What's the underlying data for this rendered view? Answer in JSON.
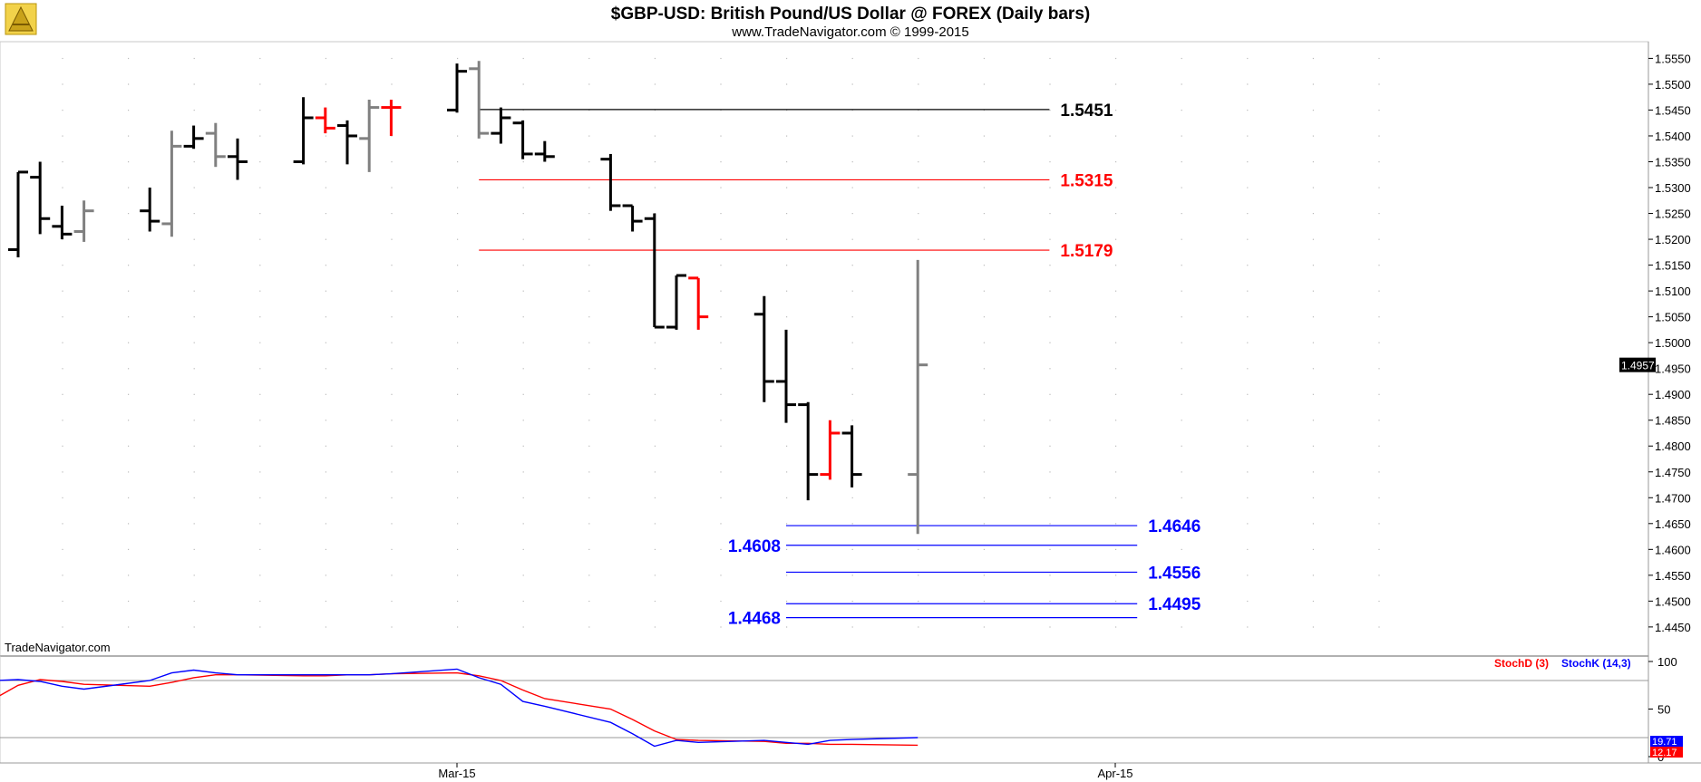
{
  "header": {
    "title": "$GBP-USD:  British Pound/US Dollar @ FOREX  (Daily bars)",
    "copyright": "www.TradeNavigator.com © 1999-2015"
  },
  "watermark": "TradeNavigator.com",
  "colors": {
    "bar_black": "#000000",
    "bar_gray": "#808080",
    "bar_red": "#ff0000",
    "stoch_d": "#ff0000",
    "stoch_k": "#0000ff",
    "level_black": "#000000",
    "level_red": "#ff0000",
    "level_blue": "#0000ff",
    "background": "#ffffff",
    "grid": "#bbbbbb"
  },
  "chart_data": [
    {
      "type": "ohlc",
      "title": "$GBP-USD:  British Pound/US Dollar @ FOREX  (Daily bars)",
      "y_axis_ticks": [
        "1.5550",
        "1.5500",
        "1.5450",
        "1.5400",
        "1.5350",
        "1.5300",
        "1.5250",
        "1.5200",
        "1.5150",
        "1.5100",
        "1.5050",
        "1.5000",
        "1.4950",
        "1.4900",
        "1.4850",
        "1.4800",
        "1.4750",
        "1.4700",
        "1.4650",
        "1.4600",
        "1.4550",
        "1.4500",
        "1.4450"
      ],
      "ylim": [
        1.442,
        1.557
      ],
      "x_axis_labels": [
        {
          "label": "Mar-15",
          "date": "2015-03-02"
        },
        {
          "label": "Apr-15",
          "date": "2015-04-01"
        }
      ],
      "last_price": "1.4957",
      "grid": true,
      "bars": [
        {
          "date": "2015-02-10",
          "o": 1.518,
          "h": 1.533,
          "l": 1.5165,
          "c": 1.533,
          "color": "black"
        },
        {
          "date": "2015-02-11",
          "o": 1.532,
          "h": 1.535,
          "l": 1.521,
          "c": 1.524,
          "color": "black"
        },
        {
          "date": "2015-02-12",
          "o": 1.5225,
          "h": 1.5265,
          "l": 1.52,
          "c": 1.521,
          "color": "black"
        },
        {
          "date": "2015-02-13",
          "o": 1.5215,
          "h": 1.5275,
          "l": 1.5195,
          "c": 1.5255,
          "color": "gray"
        },
        {
          "date": "2015-02-16",
          "o": 1.5255,
          "h": 1.53,
          "l": 1.5215,
          "c": 1.5235,
          "color": "black"
        },
        {
          "date": "2015-02-17",
          "o": 1.523,
          "h": 1.541,
          "l": 1.5205,
          "c": 1.538,
          "color": "gray"
        },
        {
          "date": "2015-02-18",
          "o": 1.538,
          "h": 1.542,
          "l": 1.5375,
          "c": 1.5395,
          "color": "black"
        },
        {
          "date": "2015-02-19",
          "o": 1.5405,
          "h": 1.5425,
          "l": 1.534,
          "c": 1.536,
          "color": "gray"
        },
        {
          "date": "2015-02-20",
          "o": 1.536,
          "h": 1.5395,
          "l": 1.5315,
          "c": 1.535,
          "color": "black"
        },
        {
          "date": "2015-02-23",
          "o": 1.535,
          "h": 1.5475,
          "l": 1.5345,
          "c": 1.5435,
          "color": "black"
        },
        {
          "date": "2015-02-24",
          "o": 1.5435,
          "h": 1.5455,
          "l": 1.5405,
          "c": 1.5415,
          "color": "red"
        },
        {
          "date": "2015-02-25",
          "o": 1.542,
          "h": 1.543,
          "l": 1.5345,
          "c": 1.54,
          "color": "black"
        },
        {
          "date": "2015-02-26",
          "o": 1.5395,
          "h": 1.547,
          "l": 1.533,
          "c": 1.5455,
          "color": "gray"
        },
        {
          "date": "2015-02-27",
          "o": 1.5455,
          "h": 1.547,
          "l": 1.54,
          "c": 1.5455,
          "color": "red"
        },
        {
          "date": "2015-03-02",
          "o": 1.545,
          "h": 1.554,
          "l": 1.5445,
          "c": 1.5525,
          "color": "black"
        },
        {
          "date": "2015-03-03",
          "o": 1.553,
          "h": 1.5545,
          "l": 1.5395,
          "c": 1.5405,
          "color": "gray"
        },
        {
          "date": "2015-03-04",
          "o": 1.5405,
          "h": 1.5455,
          "l": 1.5385,
          "c": 1.5435,
          "color": "black"
        },
        {
          "date": "2015-03-05",
          "o": 1.5425,
          "h": 1.543,
          "l": 1.5355,
          "c": 1.5365,
          "color": "black"
        },
        {
          "date": "2015-03-06",
          "o": 1.5365,
          "h": 1.539,
          "l": 1.535,
          "c": 1.536,
          "color": "black"
        },
        {
          "date": "2015-03-09",
          "o": 1.5355,
          "h": 1.5365,
          "l": 1.5255,
          "c": 1.5265,
          "color": "black"
        },
        {
          "date": "2015-03-10",
          "o": 1.5265,
          "h": 1.5265,
          "l": 1.5215,
          "c": 1.5235,
          "color": "black"
        },
        {
          "date": "2015-03-11",
          "o": 1.524,
          "h": 1.525,
          "l": 1.503,
          "c": 1.503,
          "color": "black"
        },
        {
          "date": "2015-03-12",
          "o": 1.503,
          "h": 1.513,
          "l": 1.5025,
          "c": 1.513,
          "color": "black"
        },
        {
          "date": "2015-03-13",
          "o": 1.5125,
          "h": 1.5125,
          "l": 1.5025,
          "c": 1.505,
          "color": "red"
        },
        {
          "date": "2015-03-16",
          "o": 1.5055,
          "h": 1.509,
          "l": 1.4885,
          "c": 1.4925,
          "color": "black"
        },
        {
          "date": "2015-03-17",
          "o": 1.4925,
          "h": 1.5025,
          "l": 1.4845,
          "c": 1.488,
          "color": "black"
        },
        {
          "date": "2015-03-18",
          "o": 1.488,
          "h": 1.4885,
          "l": 1.4695,
          "c": 1.4745,
          "color": "black"
        },
        {
          "date": "2015-03-19",
          "o": 1.4745,
          "h": 1.485,
          "l": 1.4735,
          "c": 1.4825,
          "color": "red"
        },
        {
          "date": "2015-03-20",
          "o": 1.4825,
          "h": 1.484,
          "l": 1.472,
          "c": 1.4745,
          "color": "black"
        },
        {
          "date": "2015-03-23",
          "o": 1.4745,
          "h": 1.516,
          "l": 1.463,
          "c": 1.4957,
          "color": "gray"
        }
      ],
      "levels": [
        {
          "value": 1.5451,
          "label": "1.5451",
          "color": "black",
          "from": "2015-03-03",
          "to": "2015-03-29",
          "label_side": "right"
        },
        {
          "value": 1.5315,
          "label": "1.5315",
          "color": "red",
          "from": "2015-03-03",
          "to": "2015-03-29",
          "label_side": "right"
        },
        {
          "value": 1.5179,
          "label": "1.5179",
          "color": "red",
          "from": "2015-03-03",
          "to": "2015-03-29",
          "label_side": "right"
        },
        {
          "value": 1.4646,
          "label": "1.4646",
          "color": "blue",
          "from": "2015-03-17",
          "to": "2015-04-02",
          "label_side": "right"
        },
        {
          "value": 1.4608,
          "label": "1.4608",
          "color": "blue",
          "from": "2015-03-17",
          "to": "2015-04-02",
          "label_side": "left"
        },
        {
          "value": 1.4556,
          "label": "1.4556",
          "color": "blue",
          "from": "2015-03-17",
          "to": "2015-04-02",
          "label_side": "right"
        },
        {
          "value": 1.4495,
          "label": "1.4495",
          "color": "blue",
          "from": "2015-03-17",
          "to": "2015-04-02",
          "label_side": "right"
        },
        {
          "value": 1.4468,
          "label": "1.4468",
          "color": "blue",
          "from": "2015-03-17",
          "to": "2015-04-02",
          "label_side": "left"
        }
      ]
    },
    {
      "type": "line",
      "legend": [
        "StochD (3)",
        "StochK (14,3)"
      ],
      "y_axis_ticks": [
        "100",
        "50",
        "0"
      ],
      "ylim": [
        0,
        100
      ],
      "reference_lines": [
        80,
        20
      ],
      "last_values": {
        "StochK (14,3)": "19.71",
        "StochD (3)": "12.17"
      },
      "x": [
        "2015-02-09",
        "2015-02-10",
        "2015-02-11",
        "2015-02-12",
        "2015-02-13",
        "2015-02-16",
        "2015-02-17",
        "2015-02-18",
        "2015-02-19",
        "2015-02-20",
        "2015-02-23",
        "2015-02-24",
        "2015-02-25",
        "2015-02-26",
        "2015-02-27",
        "2015-03-02",
        "2015-03-03",
        "2015-03-04",
        "2015-03-05",
        "2015-03-06",
        "2015-03-09",
        "2015-03-10",
        "2015-03-11",
        "2015-03-12",
        "2015-03-13",
        "2015-03-16",
        "2015-03-17",
        "2015-03-18",
        "2015-03-19",
        "2015-03-20",
        "2015-03-23"
      ],
      "series": [
        {
          "name": "StochD (3)",
          "color": "red",
          "values": [
            62,
            75,
            81,
            79,
            76,
            74,
            78,
            83,
            86,
            86,
            85,
            85,
            86,
            86,
            87,
            88,
            85,
            80,
            70,
            61,
            50,
            39,
            27,
            18,
            17,
            16,
            14,
            14,
            13,
            13,
            12
          ]
        },
        {
          "name": "StochK (14,3)",
          "color": "blue",
          "values": [
            80,
            81,
            79,
            74,
            71,
            80,
            88,
            91,
            88,
            86,
            86,
            86,
            86,
            86,
            87,
            92,
            83,
            76,
            58,
            53,
            36,
            24,
            11,
            17,
            15,
            17,
            15,
            13,
            17,
            18,
            20
          ]
        }
      ]
    }
  ]
}
